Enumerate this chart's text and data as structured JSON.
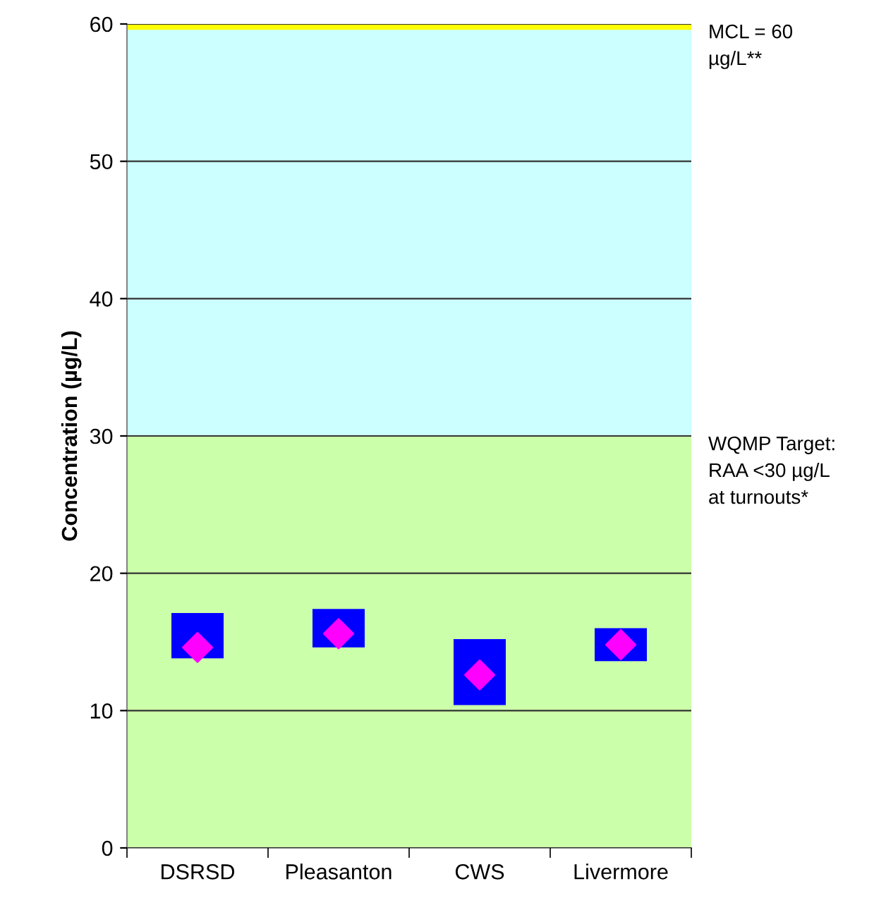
{
  "chart_data": {
    "type": "bar",
    "ylabel": "Concentration (µg/L)",
    "categories": [
      "DSRSD",
      "Pleasanton",
      "CWS",
      "Livermore"
    ],
    "series": [
      {
        "color": "#0000ff",
        "values": [
          3.3,
          2.8,
          4.8,
          2.4
        ],
        "base": [
          13.8,
          14.6,
          10.4,
          13.6
        ]
      },
      {
        "type": "scatter",
        "color": "#ff00ff",
        "marker": "diamond",
        "x": [
          "DSRSD",
          "Pleasanton",
          "CWS",
          "Livermore"
        ],
        "values": [
          14.6,
          15.6,
          12.6,
          14.8
        ]
      }
    ],
    "ylim": [
      0,
      60
    ],
    "yticks": [
      0,
      10,
      20,
      30,
      40,
      50,
      60
    ],
    "grid": "y",
    "legend": false,
    "bands": [
      {
        "axis": "y",
        "from": 0,
        "to": 30,
        "label": "WQMP Target:\nRAA <30 µg/L\nat turnouts*",
        "color": "#ccffaa"
      },
      {
        "axis": "y",
        "from": 30,
        "to": 60,
        "label": null,
        "color": "#ccffff"
      }
    ],
    "ref_lines": [
      {
        "axis": "y",
        "value": 60,
        "label": "MCL = 60\nµg/L**",
        "color": "#ffff00"
      }
    ]
  }
}
